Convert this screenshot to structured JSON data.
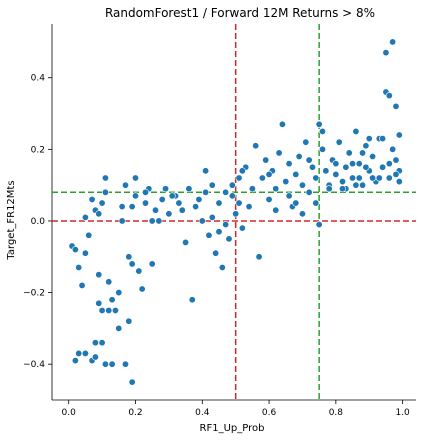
{
  "chart_data": {
    "type": "scatter",
    "title": "RandomForest1 / Forward 12M Returns > 8%",
    "xlabel": "RF1_Up_Prob",
    "ylabel": "Target_FR12Mts",
    "xlim": [
      -0.05,
      1.04
    ],
    "ylim": [
      -0.5,
      0.55
    ],
    "xticks": [
      0.0,
      0.2,
      0.4,
      0.6,
      0.8,
      1.0
    ],
    "xtick_labels": [
      "0.0",
      "0.2",
      "0.4",
      "0.6",
      "0.8",
      "1.0"
    ],
    "yticks": [
      -0.4,
      -0.2,
      0.0,
      0.2,
      0.4
    ],
    "ytick_labels": [
      "−0.4",
      "−0.2",
      "0.0",
      "0.2",
      "0.4"
    ],
    "grid": false,
    "point_color": "#1f77b4",
    "reference_lines": [
      {
        "orientation": "vertical",
        "value": 0.5,
        "color": "#d62728",
        "style": "dashed"
      },
      {
        "orientation": "horizontal",
        "value": 0.0,
        "color": "#d62728",
        "style": "dashed"
      },
      {
        "orientation": "vertical",
        "value": 0.75,
        "color": "#2ca02c",
        "style": "dashed"
      },
      {
        "orientation": "horizontal",
        "value": 0.08,
        "color": "#2ca02c",
        "style": "dashed"
      }
    ],
    "points": [
      [
        0.01,
        -0.07
      ],
      [
        0.02,
        -0.08
      ],
      [
        0.03,
        -0.13
      ],
      [
        0.04,
        -0.18
      ],
      [
        0.05,
        -0.09
      ],
      [
        0.06,
        -0.04
      ],
      [
        0.07,
        0.06
      ],
      [
        0.08,
        0.03
      ],
      [
        0.09,
        -0.15
      ],
      [
        0.1,
        0.05
      ],
      [
        0.11,
        0.08
      ],
      [
        0.12,
        -0.17
      ],
      [
        0.13,
        -0.22
      ],
      [
        0.14,
        -0.25
      ],
      [
        0.15,
        -0.2
      ],
      [
        0.16,
        0.04
      ],
      [
        0.17,
        0.1
      ],
      [
        0.18,
        -0.1
      ],
      [
        0.19,
        -0.12
      ],
      [
        0.2,
        0.07
      ],
      [
        0.21,
        -0.14
      ],
      [
        0.22,
        -0.19
      ],
      [
        0.23,
        0.05
      ],
      [
        0.24,
        0.09
      ],
      [
        0.25,
        -0.12
      ],
      [
        0.26,
        0.03
      ],
      [
        0.27,
        0.0
      ],
      [
        0.28,
        0.06
      ],
      [
        0.3,
        0.02
      ],
      [
        0.32,
        0.07
      ],
      [
        0.34,
        0.03
      ],
      [
        0.35,
        -0.06
      ],
      [
        0.36,
        0.09
      ],
      [
        0.37,
        -0.22
      ],
      [
        0.38,
        0.04
      ],
      [
        0.39,
        0.06
      ],
      [
        0.4,
        0.0
      ],
      [
        0.41,
        0.14
      ],
      [
        0.42,
        -0.04
      ],
      [
        0.43,
        0.1
      ],
      [
        0.44,
        -0.09
      ],
      [
        0.45,
        0.05
      ],
      [
        0.46,
        -0.13
      ],
      [
        0.47,
        0.08
      ],
      [
        0.48,
        -0.05
      ],
      [
        0.49,
        0.1
      ],
      [
        0.5,
        0.02
      ],
      [
        0.51,
        0.12
      ],
      [
        0.52,
        -0.02
      ],
      [
        0.53,
        0.15
      ],
      [
        0.55,
        0.09
      ],
      [
        0.56,
        0.21
      ],
      [
        0.57,
        -0.1
      ],
      [
        0.58,
        0.12
      ],
      [
        0.59,
        0.17
      ],
      [
        0.6,
        0.06
      ],
      [
        0.61,
        0.14
      ],
      [
        0.62,
        0.09
      ],
      [
        0.63,
        0.19
      ],
      [
        0.64,
        0.27
      ],
      [
        0.65,
        0.11
      ],
      [
        0.66,
        0.16
      ],
      [
        0.67,
        0.04
      ],
      [
        0.68,
        0.13
      ],
      [
        0.69,
        0.18
      ],
      [
        0.7,
        0.1
      ],
      [
        0.71,
        0.22
      ],
      [
        0.72,
        0.08
      ],
      [
        0.73,
        0.15
      ],
      [
        0.74,
        0.12
      ],
      [
        0.75,
        0.27
      ],
      [
        0.76,
        0.2
      ],
      [
        0.77,
        0.14
      ],
      [
        0.78,
        0.1
      ],
      [
        0.79,
        0.17
      ],
      [
        0.8,
        0.13
      ],
      [
        0.81,
        0.22
      ],
      [
        0.82,
        0.11
      ],
      [
        0.83,
        0.15
      ],
      [
        0.84,
        0.19
      ],
      [
        0.85,
        0.12
      ],
      [
        0.86,
        0.25
      ],
      [
        0.87,
        0.16
      ],
      [
        0.88,
        0.1
      ],
      [
        0.89,
        0.21
      ],
      [
        0.9,
        0.14
      ],
      [
        0.91,
        0.18
      ],
      [
        0.92,
        0.11
      ],
      [
        0.93,
        0.23
      ],
      [
        0.94,
        0.15
      ],
      [
        0.95,
        0.36
      ],
      [
        0.96,
        0.12
      ],
      [
        0.97,
        0.2
      ],
      [
        0.98,
        0.17
      ],
      [
        0.99,
        0.24
      ],
      [
        0.99,
        0.14
      ],
      [
        0.98,
        0.32
      ],
      [
        0.97,
        0.5
      ],
      [
        0.95,
        0.47
      ],
      [
        0.96,
        0.35
      ],
      [
        0.02,
        -0.39
      ],
      [
        0.03,
        -0.37
      ],
      [
        0.05,
        -0.37
      ],
      [
        0.07,
        -0.39
      ],
      [
        0.08,
        -0.38
      ],
      [
        0.08,
        -0.34
      ],
      [
        0.1,
        -0.34
      ],
      [
        0.11,
        -0.4
      ],
      [
        0.13,
        -0.4
      ],
      [
        0.17,
        -0.4
      ],
      [
        0.19,
        -0.45
      ],
      [
        0.09,
        -0.23
      ],
      [
        0.1,
        -0.25
      ],
      [
        0.12,
        -0.25
      ],
      [
        0.15,
        -0.3
      ],
      [
        0.18,
        -0.28
      ],
      [
        0.05,
        0.01
      ],
      [
        0.09,
        0.02
      ],
      [
        0.11,
        0.12
      ],
      [
        0.16,
        0.0
      ],
      [
        0.19,
        0.04
      ],
      [
        0.2,
        0.12
      ],
      [
        0.23,
        0.08
      ],
      [
        0.25,
        0.0
      ],
      [
        0.29,
        0.09
      ],
      [
        0.31,
        0.07
      ],
      [
        0.33,
        0.05
      ],
      [
        0.41,
        0.08
      ],
      [
        0.43,
        0.01
      ],
      [
        0.45,
        -0.03
      ],
      [
        0.47,
        -0.01
      ],
      [
        0.49,
        0.07
      ],
      [
        0.51,
        0.05
      ],
      [
        0.52,
        0.14
      ],
      [
        0.54,
        0.04
      ],
      [
        0.6,
        0.13
      ],
      [
        0.62,
        0.03
      ],
      [
        0.66,
        0.07
      ],
      [
        0.68,
        0.05
      ],
      [
        0.7,
        0.02
      ],
      [
        0.72,
        0.17
      ],
      [
        0.74,
        0.05
      ],
      [
        0.75,
        -0.01
      ],
      [
        0.78,
        0.09
      ],
      [
        0.8,
        0.16
      ],
      [
        0.83,
        0.09
      ],
      [
        0.85,
        0.16
      ],
      [
        0.87,
        0.12
      ],
      [
        0.89,
        0.15
      ],
      [
        0.91,
        0.12
      ],
      [
        0.93,
        0.12
      ],
      [
        0.94,
        0.23
      ],
      [
        0.96,
        0.16
      ],
      [
        0.98,
        0.13
      ],
      [
        0.99,
        0.11
      ],
      [
        0.9,
        0.23
      ],
      [
        0.88,
        0.19
      ],
      [
        0.82,
        0.09
      ],
      [
        0.86,
        0.1
      ],
      [
        0.76,
        0.25
      ]
    ]
  }
}
